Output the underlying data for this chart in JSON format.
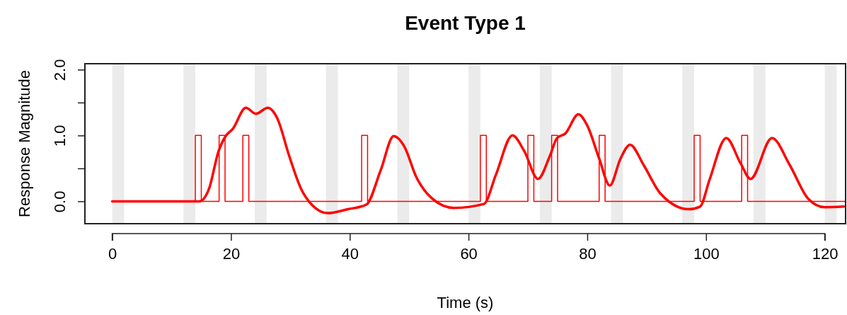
{
  "chart_data": {
    "type": "line",
    "title": "Event Type 1",
    "xlabel": "Time (s)",
    "ylabel": "Response Magnitude",
    "xlim": [
      -4.6,
      123.5
    ],
    "ylim": [
      -0.34,
      2.09
    ],
    "xticks": [
      0,
      20,
      40,
      60,
      80,
      100,
      120
    ],
    "yticks": [
      {
        "value": 0,
        "label": "0.0"
      },
      {
        "value": 0.5,
        "label": null
      },
      {
        "value": 1,
        "label": "1.0"
      },
      {
        "value": 1.5,
        "label": null
      },
      {
        "value": 2,
        "label": "2.0"
      }
    ],
    "grid": false,
    "bands": [
      {
        "axis": "x",
        "from": 0,
        "to": 2,
        "color": "#ebebeb"
      },
      {
        "axis": "x",
        "from": 12,
        "to": 14,
        "color": "#ebebeb"
      },
      {
        "axis": "x",
        "from": 24,
        "to": 26,
        "color": "#ebebeb"
      },
      {
        "axis": "x",
        "from": 36,
        "to": 38,
        "color": "#ebebeb"
      },
      {
        "axis": "x",
        "from": 48,
        "to": 50,
        "color": "#ebebeb"
      },
      {
        "axis": "x",
        "from": 60,
        "to": 62,
        "color": "#ebebeb"
      },
      {
        "axis": "x",
        "from": 72,
        "to": 74,
        "color": "#ebebeb"
      },
      {
        "axis": "x",
        "from": 84,
        "to": 86,
        "color": "#ebebeb"
      },
      {
        "axis": "x",
        "from": 96,
        "to": 98,
        "color": "#ebebeb"
      },
      {
        "axis": "x",
        "from": 108,
        "to": 110,
        "color": "#ebebeb"
      },
      {
        "axis": "x",
        "from": 120,
        "to": 122,
        "color": "#ebebeb"
      }
    ],
    "series": [
      {
        "type": "step",
        "color": "#ff0000",
        "x": [
          0,
          14,
          15,
          18,
          19,
          22,
          23,
          42,
          43,
          62,
          63,
          70,
          71,
          74,
          75,
          82,
          83,
          98,
          99,
          106,
          107,
          123.5
        ],
        "values": [
          0,
          1,
          0,
          1,
          0,
          1,
          0,
          1,
          0,
          1,
          0,
          1,
          0,
          1,
          0,
          1,
          0,
          1,
          0,
          1,
          0,
          0
        ]
      },
      {
        "color": "#ff0000",
        "x": [
          0,
          14.7,
          16.3,
          17.9,
          19.1,
          20.3,
          22.5,
          24.2,
          26.2,
          27.8,
          29.8,
          31.8,
          33.7,
          36.3,
          39.7,
          42.8,
          45.2,
          47.4,
          49.2,
          51.2,
          53.9,
          57.5,
          62.6,
          64.6,
          67.4,
          69.4,
          71.7,
          73.7,
          74.9,
          76.3,
          78.5,
          80.0,
          82.0,
          83.8,
          85.6,
          87.2,
          89.5,
          92.3,
          97.1,
          99.0,
          100.6,
          103.4,
          105.8,
          107.5,
          111.1,
          114.1,
          117.2,
          120,
          123.2
        ],
        "values": [
          0,
          0,
          0.19,
          0.76,
          0.99,
          1.1,
          1.42,
          1.33,
          1.42,
          1.26,
          0.69,
          0.19,
          -0.06,
          -0.18,
          -0.12,
          -0.05,
          0.47,
          0.99,
          0.83,
          0.37,
          0.04,
          -0.1,
          -0.04,
          0.4,
          1.0,
          0.76,
          0.34,
          0.69,
          0.96,
          1.03,
          1.32,
          1.15,
          0.65,
          0.24,
          0.65,
          0.86,
          0.55,
          0.12,
          -0.12,
          -0.08,
          0.33,
          0.96,
          0.58,
          0.34,
          0.96,
          0.55,
          0.04,
          -0.09,
          -0.08
        ]
      }
    ]
  }
}
